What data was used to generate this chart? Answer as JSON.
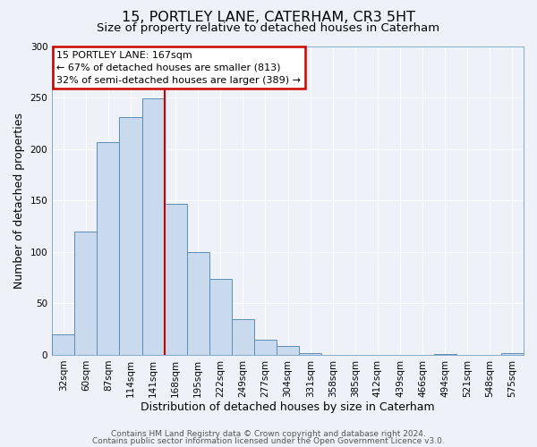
{
  "title": "15, PORTLEY LANE, CATERHAM, CR3 5HT",
  "subtitle": "Size of property relative to detached houses in Caterham",
  "xlabel": "Distribution of detached houses by size in Caterham",
  "ylabel": "Number of detached properties",
  "bin_labels": [
    "32sqm",
    "60sqm",
    "87sqm",
    "114sqm",
    "141sqm",
    "168sqm",
    "195sqm",
    "222sqm",
    "249sqm",
    "277sqm",
    "304sqm",
    "331sqm",
    "358sqm",
    "385sqm",
    "412sqm",
    "439sqm",
    "466sqm",
    "494sqm",
    "521sqm",
    "548sqm",
    "575sqm"
  ],
  "bar_values": [
    20,
    120,
    207,
    231,
    249,
    147,
    100,
    74,
    35,
    15,
    9,
    2,
    0,
    0,
    0,
    0,
    0,
    1,
    0,
    0,
    2
  ],
  "bar_color": "#c9d9ee",
  "bar_edge_color": "#5b8db8",
  "vline_color": "#cc0000",
  "vline_pos": 4.5,
  "annotation_box_text": "15 PORTLEY LANE: 167sqm\n← 67% of detached houses are smaller (813)\n32% of semi-detached houses are larger (389) →",
  "annotation_box_edge_color": "#cc0000",
  "ylim": [
    0,
    300
  ],
  "yticks": [
    0,
    50,
    100,
    150,
    200,
    250,
    300
  ],
  "footer_line1": "Contains HM Land Registry data © Crown copyright and database right 2024.",
  "footer_line2": "Contains public sector information licensed under the Open Government Licence v3.0.",
  "background_color": "#eef2f8",
  "grid_color": "#ffffff",
  "title_fontsize": 11.5,
  "subtitle_fontsize": 9.5,
  "axis_label_fontsize": 9,
  "tick_fontsize": 7.5,
  "footer_fontsize": 6.5
}
